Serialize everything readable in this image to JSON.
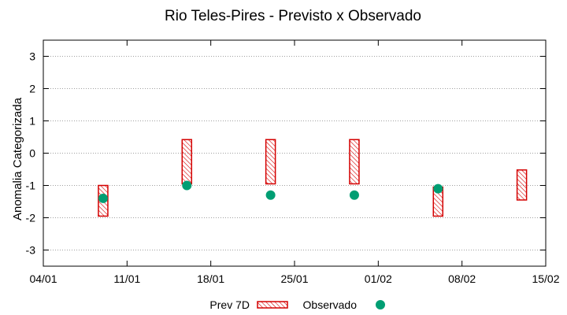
{
  "chart_data": {
    "type": "range-bar+scatter",
    "title": "Rio Teles-Pires - Previsto x Observado",
    "xlabel": "",
    "ylabel": "Anomalia Categorizada",
    "ylim": [
      -3.5,
      3.5
    ],
    "yticks": [
      "-3",
      "-2",
      "-1",
      "0",
      "1",
      "2",
      "3"
    ],
    "ytick_values": [
      -3,
      -2,
      -1,
      0,
      1,
      2,
      3
    ],
    "xlim": [
      "2022-01-04",
      "2022-02-15"
    ],
    "xtick_labels": [
      "04/01",
      "11/01",
      "18/01",
      "25/01",
      "01/02",
      "08/02",
      "15/02"
    ],
    "xtick_dates": [
      "2022-01-04",
      "2022-01-11",
      "2022-01-18",
      "2022-01-25",
      "2022-02-01",
      "2022-02-08",
      "2022-02-15"
    ],
    "grid": true,
    "legend_position": "bottom",
    "series": [
      {
        "name": "Prev 7D",
        "style": "hatched-range-bar",
        "color": "#d40000",
        "points": [
          {
            "x": "2022-01-09",
            "low": -1.95,
            "high": -1.0
          },
          {
            "x": "2022-01-16",
            "low": -0.95,
            "high": 0.42
          },
          {
            "x": "2022-01-23",
            "low": -0.95,
            "high": 0.42
          },
          {
            "x": "2022-01-30",
            "low": -0.95,
            "high": 0.42
          },
          {
            "x": "2022-02-06",
            "low": -1.95,
            "high": -1.05
          },
          {
            "x": "2022-02-13",
            "low": -1.45,
            "high": -0.52
          }
        ]
      },
      {
        "name": "Observado",
        "style": "circle",
        "color": "#009e73",
        "points": [
          {
            "x": "2022-01-09",
            "y": -1.4
          },
          {
            "x": "2022-01-16",
            "y": -1.0
          },
          {
            "x": "2022-01-23",
            "y": -1.3
          },
          {
            "x": "2022-01-30",
            "y": -1.3
          },
          {
            "x": "2022-02-06",
            "y": -1.1
          }
        ]
      }
    ]
  }
}
